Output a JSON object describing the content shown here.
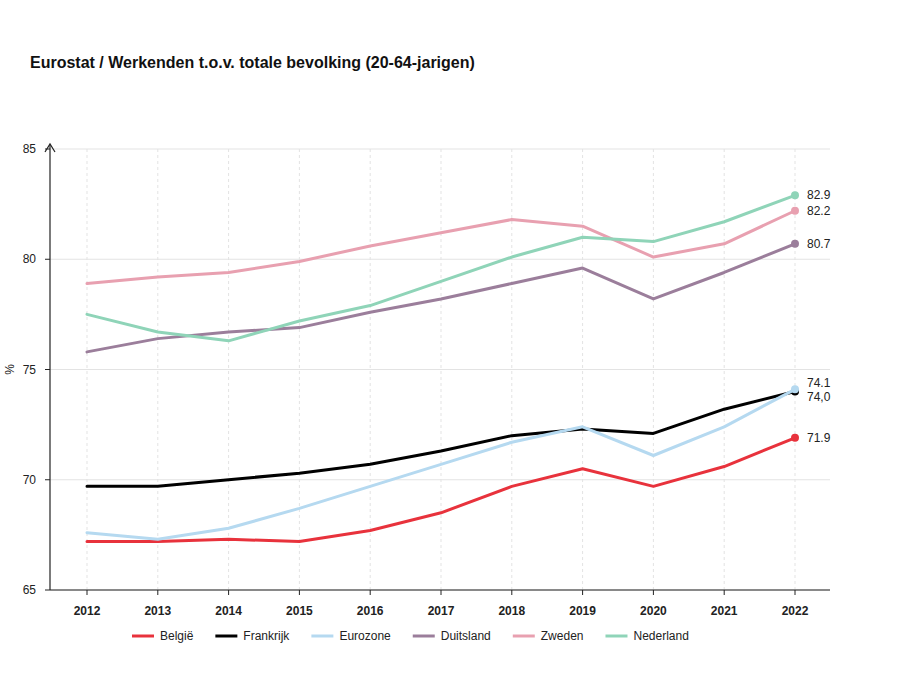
{
  "chart_data": {
    "type": "line",
    "title": "Eurostat / Werkenden t.o.v. totale bevolking (20-64-jarigen)",
    "y_label": "%",
    "categories": [
      "2012",
      "2013",
      "2014",
      "2015",
      "2016",
      "2017",
      "2018",
      "2019",
      "2020",
      "2021",
      "2022"
    ],
    "ylim": [
      65,
      85
    ],
    "yticks": [
      65,
      70,
      75,
      80,
      85
    ],
    "grid": true,
    "legend": "bottom",
    "series": [
      {
        "name": "België",
        "color": "#e8323c",
        "values": [
          67.2,
          67.2,
          67.3,
          67.2,
          67.7,
          68.5,
          69.7,
          70.5,
          69.7,
          70.6,
          71.9
        ],
        "value_labels": [
          null,
          null,
          null,
          null,
          null,
          null,
          null,
          null,
          null,
          null,
          "71.9"
        ]
      },
      {
        "name": "Frankrijk",
        "color": "#000000",
        "values": [
          69.7,
          69.7,
          70.0,
          70.3,
          70.7,
          71.3,
          72.0,
          72.3,
          72.1,
          73.2,
          74.0
        ],
        "value_labels": [
          null,
          null,
          null,
          null,
          null,
          null,
          null,
          null,
          null,
          null,
          "74,0"
        ]
      },
      {
        "name": "Eurozone",
        "color": "#b5d9f0",
        "values": [
          67.6,
          67.3,
          67.8,
          68.7,
          69.7,
          70.7,
          71.7,
          72.4,
          71.1,
          72.4,
          74.1
        ],
        "value_labels": [
          null,
          null,
          null,
          null,
          null,
          null,
          null,
          null,
          null,
          null,
          "74.1"
        ]
      },
      {
        "name": "Duitsland",
        "color": "#9b7e9b",
        "values": [
          75.8,
          76.4,
          76.7,
          76.9,
          77.6,
          78.2,
          78.9,
          79.6,
          78.2,
          79.4,
          80.7
        ],
        "value_labels": [
          null,
          null,
          null,
          null,
          null,
          null,
          null,
          null,
          null,
          null,
          "80.7"
        ]
      },
      {
        "name": "Zweden",
        "color": "#e8a0b0",
        "values": [
          78.9,
          79.2,
          79.4,
          79.9,
          80.6,
          81.2,
          81.8,
          81.5,
          80.1,
          80.7,
          82.2
        ],
        "value_labels": [
          null,
          null,
          null,
          null,
          null,
          null,
          null,
          null,
          null,
          null,
          "82.2"
        ]
      },
      {
        "name": "Nederland",
        "color": "#8fd4b8",
        "values": [
          77.5,
          76.7,
          76.3,
          77.2,
          77.9,
          79.0,
          80.1,
          81.0,
          80.8,
          81.7,
          82.9
        ],
        "value_labels": [
          null,
          null,
          null,
          null,
          null,
          null,
          null,
          null,
          null,
          null,
          "82.9"
        ]
      }
    ]
  }
}
